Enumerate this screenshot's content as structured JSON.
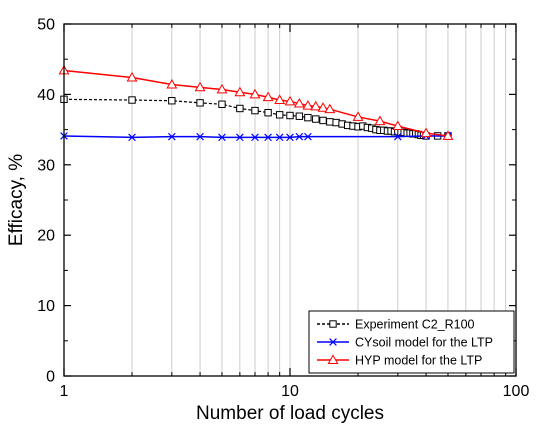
{
  "chart_data": {
    "type": "line",
    "xlabel": "Number of load cycles",
    "ylabel": "Efficacy, %",
    "xscale": "log",
    "xlim": [
      1,
      100
    ],
    "ylim": [
      0,
      50
    ],
    "x_ticks": [
      {
        "value": 1,
        "label": "1"
      },
      {
        "value": 10,
        "label": "10"
      },
      {
        "value": 100,
        "label": "100"
      }
    ],
    "y_ticks": [
      {
        "value": 0,
        "label": "0"
      },
      {
        "value": 10,
        "label": "10"
      },
      {
        "value": 20,
        "label": "20"
      },
      {
        "value": 30,
        "label": "30"
      },
      {
        "value": 40,
        "label": "40"
      },
      {
        "value": 50,
        "label": "50"
      }
    ],
    "grid": {
      "x_minor": true,
      "y": false
    },
    "legend_position": "bottom-right",
    "series": [
      {
        "name": "Experiment C2_R100",
        "color": "#000000",
        "line_style": "dashed",
        "marker": "square",
        "x": [
          1,
          2,
          3,
          4,
          5,
          6,
          7,
          8,
          9,
          10,
          11,
          12,
          13,
          14,
          15,
          16,
          17,
          18,
          19,
          20,
          21,
          22,
          23,
          24,
          25,
          26,
          27,
          28,
          29,
          30,
          31,
          32,
          33,
          34,
          35,
          36,
          37,
          38,
          39,
          40,
          45,
          50
        ],
        "y": [
          39.3,
          39.2,
          39.1,
          38.8,
          38.6,
          38.0,
          37.7,
          37.4,
          37.1,
          37.0,
          36.9,
          36.7,
          36.5,
          36.3,
          36.1,
          36.0,
          35.8,
          35.6,
          35.5,
          35.4,
          35.5,
          35.3,
          35.2,
          35.0,
          34.9,
          34.9,
          34.8,
          34.8,
          34.7,
          34.7,
          34.6,
          34.6,
          34.5,
          34.5,
          34.4,
          34.4,
          34.3,
          34.2,
          34.2,
          34.1,
          34.1,
          34.1
        ]
      },
      {
        "name": "CYsoil model for the LTP",
        "color": "#0000ff",
        "line_style": "solid",
        "marker": "x",
        "x": [
          1,
          2,
          3,
          4,
          5,
          6,
          7,
          8,
          9,
          10,
          11,
          12,
          30,
          40,
          50
        ],
        "y": [
          34.1,
          33.9,
          34.0,
          34.0,
          33.9,
          33.9,
          33.9,
          33.9,
          33.9,
          33.9,
          34.0,
          34.0,
          34.0,
          34.1,
          34.1
        ]
      },
      {
        "name": "HYP model for the LTP",
        "color": "#ff0000",
        "line_style": "solid",
        "marker": "triangle",
        "x": [
          1,
          2,
          3,
          4,
          5,
          6,
          7,
          8,
          9,
          10,
          11,
          12,
          13,
          14,
          15,
          20,
          25,
          30,
          40,
          50
        ],
        "y": [
          43.4,
          42.4,
          41.4,
          41.0,
          40.7,
          40.3,
          40.0,
          39.6,
          39.2,
          39.0,
          38.7,
          38.4,
          38.3,
          38.1,
          37.9,
          36.8,
          36.2,
          35.5,
          34.5,
          34.1
        ]
      }
    ]
  }
}
